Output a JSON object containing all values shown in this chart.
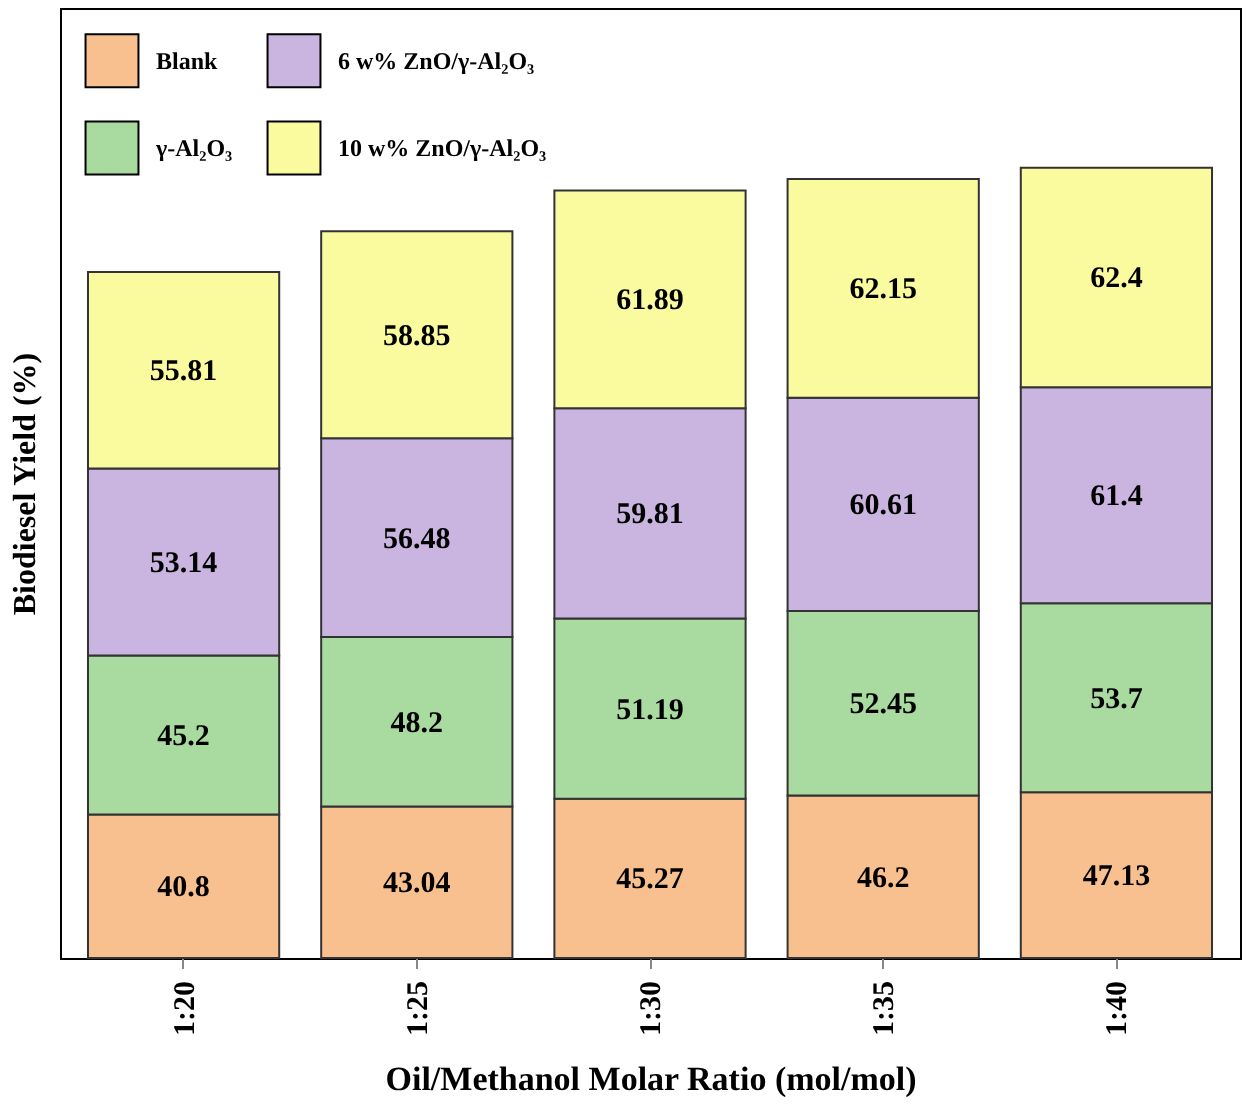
{
  "chart_data": {
    "type": "bar",
    "stacked": true,
    "xlabel": "Oil/Methanol Molar Ratio (mol/mol)",
    "ylabel": "Biodiesel Yield (%)",
    "categories": [
      "1:20",
      "1:25",
      "1:30",
      "1:35",
      "1:40"
    ],
    "series": [
      {
        "name": "Blank",
        "color": "#f9c08f",
        "values": [
          40.8,
          43.04,
          45.27,
          46.2,
          47.13
        ]
      },
      {
        "name": "γ-Al₂O₃",
        "color": "#a9dba0",
        "values": [
          45.2,
          48.2,
          51.19,
          52.45,
          53.7
        ]
      },
      {
        "name": "6 w% ZnO/γ-Al₂O₃",
        "color": "#c9b5e0",
        "values": [
          53.14,
          56.48,
          59.81,
          60.61,
          61.4
        ]
      },
      {
        "name": "10 w% ZnO/γ-Al₂O₃",
        "color": "#fafa9e",
        "values": [
          55.81,
          58.85,
          61.89,
          62.15,
          62.4
        ]
      }
    ],
    "ylim": [
      0,
      270
    ],
    "tick_labels": "x",
    "data_labels": true,
    "legend": "top left",
    "grid": false
  }
}
